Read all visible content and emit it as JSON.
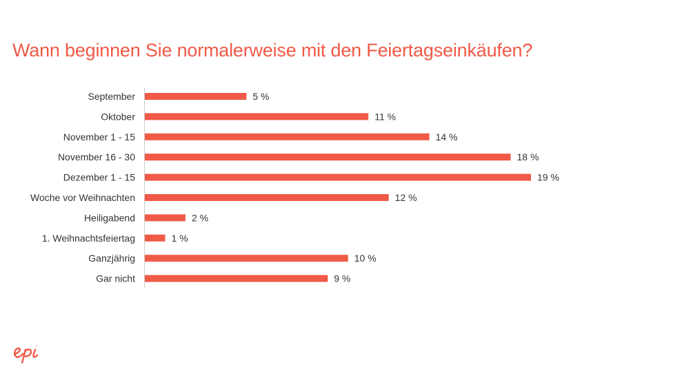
{
  "title": "Wann beginnen Sie normalerweise mit den Feiertagseinkäufen?",
  "colors": {
    "accent": "#f05a47",
    "bar": "#f05a47",
    "text": "#333333",
    "axis": "#cccccc"
  },
  "logo": {
    "icon": "epi-logo",
    "text": "epi"
  },
  "chart_data": {
    "type": "bar",
    "orientation": "horizontal",
    "title": "Wann beginnen Sie normalerweise mit den Feiertagseinkäufen?",
    "categories": [
      "September",
      "Oktober",
      "November 1 - 15",
      "November 16 - 30",
      "Dezember 1 - 15",
      "Woche vor Weihnachten",
      "Heiligabend",
      "1. Weihnachtsfeiertag",
      "Ganzjährig",
      "Gar nicht"
    ],
    "values": [
      5,
      11,
      14,
      18,
      19,
      12,
      2,
      1,
      10,
      9
    ],
    "value_labels": [
      "5 %",
      "11 %",
      "14 %",
      "18 %",
      "19 %",
      "12 %",
      "2 %",
      "1 %",
      "10 %",
      "9 %"
    ],
    "unit": "%",
    "xlabel": "",
    "ylabel": "",
    "xlim": [
      0,
      19
    ],
    "grid": false,
    "legend": "none"
  }
}
